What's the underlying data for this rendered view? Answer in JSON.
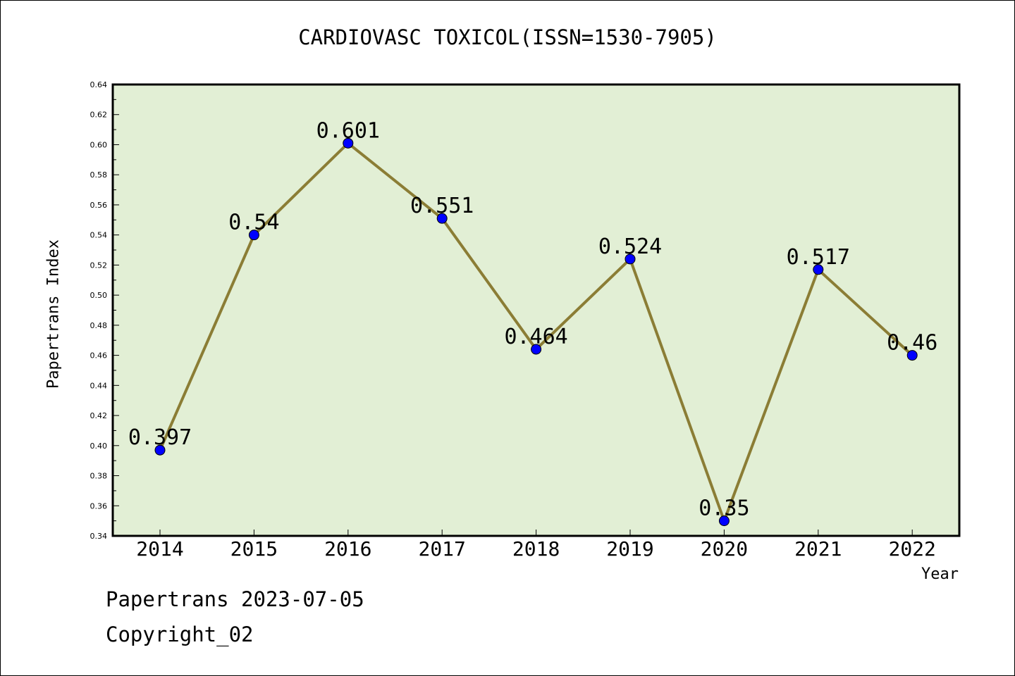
{
  "chart_data": {
    "type": "line",
    "title": "CARDIOVASC TOXICOL(ISSN=1530-7905)",
    "xlabel": "Year",
    "ylabel": "Papertrans Index",
    "categories": [
      "2014",
      "2015",
      "2016",
      "2017",
      "2018",
      "2019",
      "2020",
      "2021",
      "2022"
    ],
    "values": [
      0.397,
      0.54,
      0.601,
      0.551,
      0.464,
      0.524,
      0.35,
      0.517,
      0.46
    ],
    "data_labels": [
      "0.397",
      "0.54",
      "0.601",
      "0.551",
      "0.464",
      "0.524",
      "0.35",
      "0.517",
      "0.46"
    ],
    "ylim": [
      0.34,
      0.64
    ],
    "yticks": [
      "0.34",
      "0.36",
      "0.38",
      "0.40",
      "0.42",
      "0.44",
      "0.46",
      "0.48",
      "0.50",
      "0.52",
      "0.54",
      "0.56",
      "0.58",
      "0.60",
      "0.62",
      "0.64"
    ],
    "grid": false,
    "colors": {
      "plot_background": "#e2efd5",
      "line": "#8b7d35",
      "marker": "#0000ff"
    }
  },
  "footer": {
    "date_line": "Papertrans 2023-07-05",
    "copyright": "Copyright_02"
  }
}
